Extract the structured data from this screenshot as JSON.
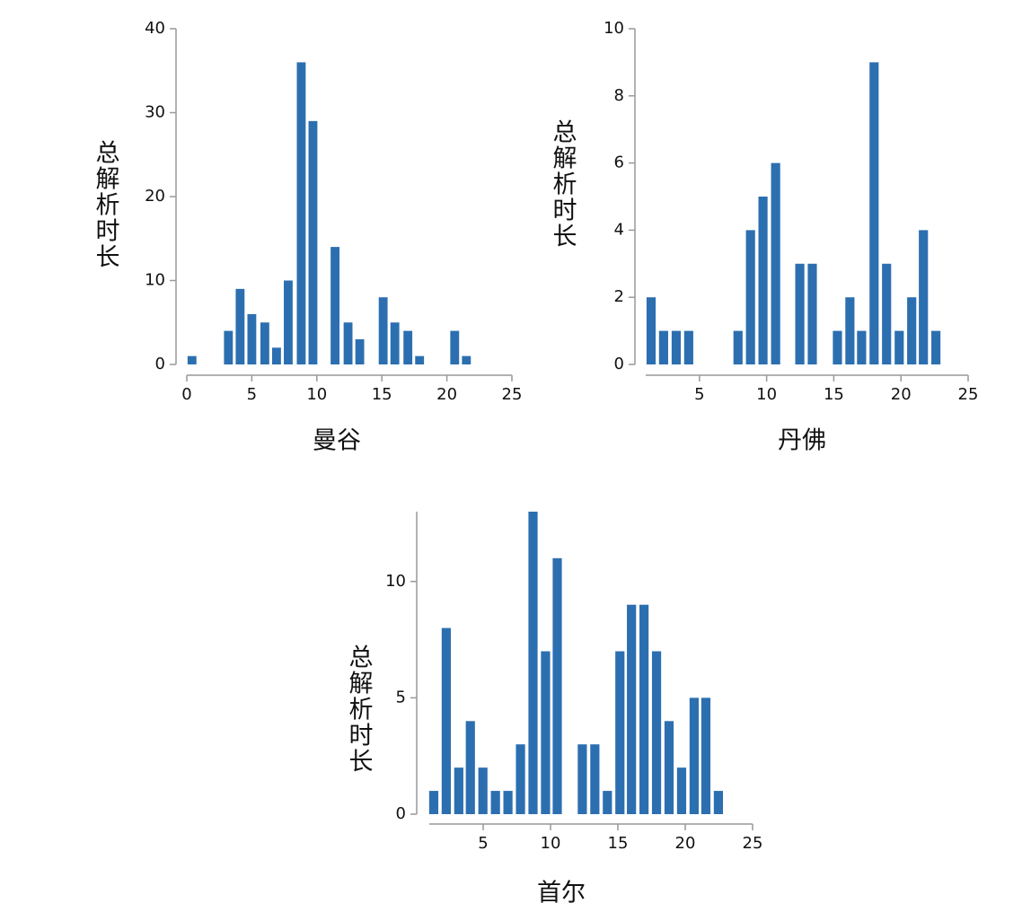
{
  "chart_data": [
    {
      "type": "bar",
      "xlabel": "曼谷",
      "ylabel": "总解析时长",
      "color": "#2c6fb0",
      "x": [
        0.4,
        3.2,
        4.1,
        5.0,
        6.0,
        6.9,
        7.8,
        8.8,
        9.7,
        11.4,
        12.4,
        13.3,
        15.1,
        16.0,
        17.0,
        17.9,
        20.6,
        21.5
      ],
      "values": [
        1,
        4,
        9,
        6,
        5,
        2,
        10,
        36,
        29,
        14,
        5,
        3,
        8,
        5,
        4,
        1,
        4,
        1
      ],
      "xlim": [
        0,
        25
      ],
      "xticks": [
        0,
        5,
        10,
        15,
        20,
        25
      ],
      "ylim": [
        0,
        40
      ],
      "yticks": [
        0,
        10,
        20,
        30,
        40
      ]
    },
    {
      "type": "bar",
      "xlabel": "丹佛",
      "ylabel": "总解析时长",
      "color": "#2c6fb0",
      "x": [
        1.4,
        2.33,
        3.27,
        4.2,
        7.87,
        8.8,
        9.73,
        10.67,
        12.47,
        13.4,
        15.27,
        16.2,
        17.07,
        18.0,
        18.93,
        19.87,
        20.8,
        21.67,
        22.6
      ],
      "values": [
        2,
        1,
        1,
        1,
        1,
        4,
        5,
        6,
        3,
        3,
        1,
        2,
        1,
        9,
        3,
        1,
        2,
        4,
        1
      ],
      "xlim": [
        1,
        25
      ],
      "xticks": [
        5,
        10,
        15,
        20,
        25
      ],
      "ylim": [
        0,
        10
      ],
      "yticks": [
        0,
        2,
        4,
        6,
        8,
        10
      ]
    },
    {
      "type": "bar",
      "xlabel": "首尔",
      "ylabel": "总解析时长",
      "color": "#2c6fb0",
      "x": [
        1.33,
        2.26,
        3.19,
        4.05,
        4.98,
        5.91,
        6.84,
        7.77,
        8.7,
        9.63,
        10.5,
        12.36,
        13.29,
        14.22,
        15.15,
        16.01,
        16.94,
        17.87,
        18.8,
        19.73,
        20.66,
        21.53,
        22.46
      ],
      "values": [
        1,
        8,
        2,
        4,
        2,
        1,
        1,
        3,
        13,
        7,
        11,
        3,
        3,
        1,
        7,
        9,
        9,
        7,
        4,
        2,
        5,
        5,
        1
      ],
      "xlim": [
        1,
        25
      ],
      "xticks": [
        5,
        10,
        15,
        20,
        25
      ],
      "ylim": [
        0,
        13
      ],
      "yticks": [
        0,
        5,
        10
      ]
    }
  ]
}
